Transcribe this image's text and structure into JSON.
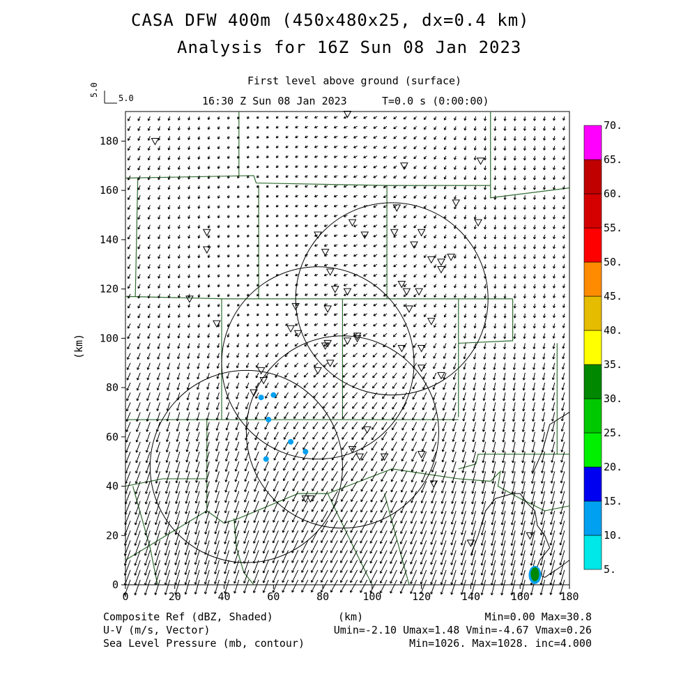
{
  "header": {
    "title": "CASA DFW 400m (450x480x25, dx=0.4 km)",
    "subtitle": "Analysis for 16Z Sun 08 Jan 2023",
    "level": "First level above ground (surface)",
    "time": "16:30 Z Sun 08 Jan 2023",
    "elapsed": "T=0.0 s (0:00:00)",
    "ref_vector_label_vertical": "5.0",
    "ref_vector_label": "5.0"
  },
  "footer": {
    "shaded_field": "Composite Ref (dBZ, Shaded)",
    "vector_field": "U-V (m/s, Vector)",
    "contour_field": "Sea Level Pressure (mb, contour)",
    "shaded_stats": "Min=0.00 Max=30.8",
    "vector_stats": "Umin=-2.10 Umax=1.48 Vmin=-4.67 Vmax=0.26",
    "contour_stats": "Min=1026. Max=1028. inc=4.000"
  },
  "chart_data": {
    "type": "heatmap",
    "title": "CASA DFW 400m (450x480x25, dx=0.4 km)",
    "subtitle": "Analysis for 16Z Sun 08 Jan 2023",
    "xlabel": "(km)",
    "ylabel": "(km)",
    "xlim": [
      0,
      180
    ],
    "ylim": [
      0,
      192
    ],
    "xticks": [
      0,
      20,
      40,
      60,
      80,
      100,
      120,
      140,
      160,
      180
    ],
    "yticks": [
      0,
      20,
      40,
      60,
      80,
      100,
      120,
      140,
      160,
      180
    ],
    "colorbar": {
      "levels": [
        "5.",
        "10.",
        "15.",
        "20.",
        "25.",
        "30.",
        "35.",
        "40.",
        "45.",
        "50.",
        "55.",
        "60.",
        "65.",
        "70."
      ],
      "colors": [
        "#00e8e8",
        "#00a0f0",
        "#0000f0",
        "#00f000",
        "#00c800",
        "#008800",
        "#ffff00",
        "#e6bc00",
        "#ff8c00",
        "#ff0000",
        "#d40000",
        "#c00000",
        "#ff00ff"
      ]
    },
    "radar_circles_km": [
      {
        "cx": 49,
        "cy": 48,
        "r": 39
      },
      {
        "cx": 88,
        "cy": 62,
        "r": 39
      },
      {
        "cx": 78,
        "cy": 90,
        "r": 39
      },
      {
        "cx": 108,
        "cy": 116,
        "r": 39
      }
    ],
    "reflectivity_echoes_km": [
      {
        "x": 55,
        "y": 76,
        "dbz": 12
      },
      {
        "x": 60,
        "y": 77,
        "dbz": 12
      },
      {
        "x": 58,
        "y": 67,
        "dbz": 12
      },
      {
        "x": 67,
        "y": 58,
        "dbz": 11
      },
      {
        "x": 73,
        "y": 54,
        "dbz": 12
      },
      {
        "x": 57,
        "y": 51,
        "dbz": 10
      },
      {
        "x": 166,
        "y": 4,
        "dbz": 30.8
      }
    ],
    "stations_km": [
      [
        12,
        180
      ],
      [
        90,
        191
      ],
      [
        113,
        170
      ],
      [
        144,
        172
      ],
      [
        33,
        143
      ],
      [
        33,
        136
      ],
      [
        134,
        155
      ],
      [
        143,
        147
      ],
      [
        110,
        153
      ],
      [
        92,
        147
      ],
      [
        78,
        142
      ],
      [
        97,
        142
      ],
      [
        109,
        143
      ],
      [
        120,
        143
      ],
      [
        117,
        138
      ],
      [
        81,
        135
      ],
      [
        124,
        132
      ],
      [
        128,
        131
      ],
      [
        132,
        133
      ],
      [
        128,
        128
      ],
      [
        83,
        127
      ],
      [
        112,
        122
      ],
      [
        114,
        119
      ],
      [
        119,
        119
      ],
      [
        85,
        120
      ],
      [
        90,
        119
      ],
      [
        26,
        116
      ],
      [
        82,
        112
      ],
      [
        115,
        112
      ],
      [
        37,
        106
      ],
      [
        69,
        113
      ],
      [
        67,
        104
      ],
      [
        70,
        102
      ],
      [
        82,
        98
      ],
      [
        81,
        97
      ],
      [
        124,
        107
      ],
      [
        90,
        99
      ],
      [
        94,
        101
      ],
      [
        94,
        100
      ],
      [
        112,
        96
      ],
      [
        120,
        96
      ],
      [
        83,
        90
      ],
      [
        78,
        87
      ],
      [
        120,
        88
      ],
      [
        128,
        85
      ],
      [
        55,
        87
      ],
      [
        56,
        83
      ],
      [
        52,
        78
      ],
      [
        75,
        35
      ],
      [
        73,
        35
      ],
      [
        92,
        55
      ],
      [
        95,
        52
      ],
      [
        98,
        63
      ],
      [
        105,
        52
      ],
      [
        120,
        53
      ],
      [
        125,
        41
      ],
      [
        140,
        17
      ],
      [
        164,
        20
      ]
    ],
    "wind_summary": {
      "u_min": -2.1,
      "u_max": 1.48,
      "v_min": -4.67,
      "v_max": 0.26,
      "vector_reference_ms": 5.0
    },
    "slp_contour": {
      "min": 1026,
      "max": 1028,
      "inc": 4.0
    }
  },
  "colors": {
    "county_lines": "#2e6b2e",
    "contours": "#000000",
    "vectors": "#000000"
  }
}
